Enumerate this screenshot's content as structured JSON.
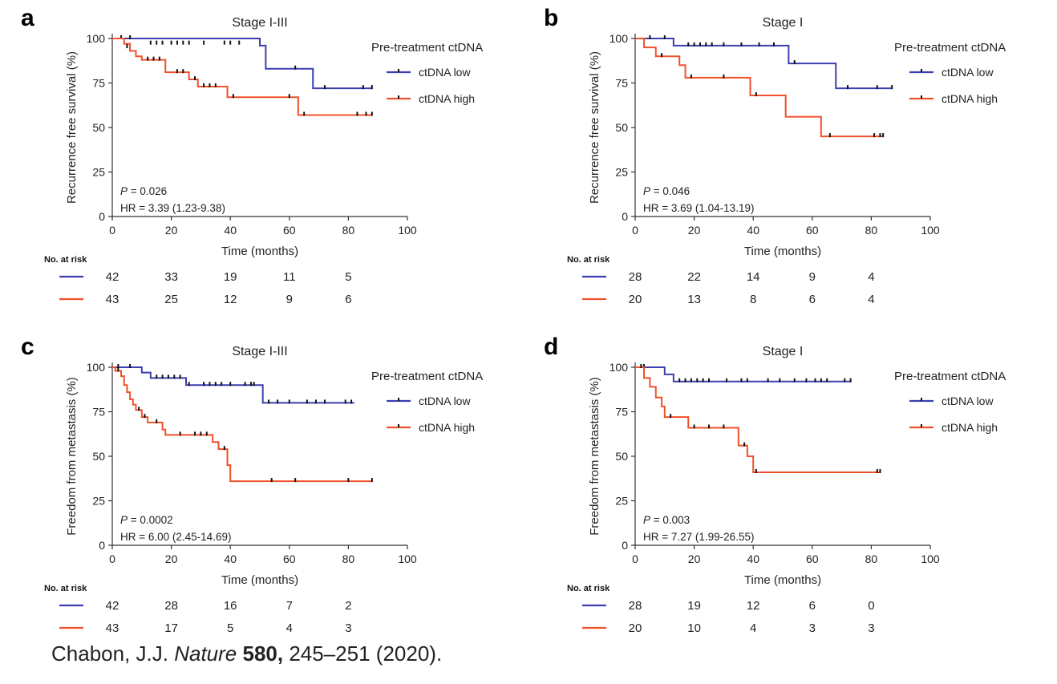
{
  "colors": {
    "low": "#3b3fb0",
    "high": "#f0502a",
    "axis": "#333333",
    "censor": "#111111"
  },
  "citation": {
    "author": "Chabon, J.J.",
    "journal": "Nature",
    "volume": "580,",
    "pages": "245–251 (2020)."
  },
  "chart_data": [
    {
      "panel": "a",
      "type": "line",
      "title": "Stage I-III",
      "xlabel": "Time (months)",
      "ylabel": "Recurrence free survival (%)",
      "xlim": [
        0,
        100
      ],
      "ylim": [
        0,
        100
      ],
      "xticks": [
        "0",
        "20",
        "40",
        "60",
        "80",
        "100"
      ],
      "yticks": [
        "0",
        "25",
        "50",
        "75",
        "100"
      ],
      "legend_title": "Pre-treatment ctDNA",
      "p_label": "P",
      "p_value": " = 0.026",
      "hr": "HR = 3.39 (1.23-9.38)",
      "risk_title": "No. at risk",
      "series": [
        {
          "name": "ctDNA low",
          "key": "low",
          "x_end": 88,
          "steps": [
            [
              0,
              100
            ],
            [
              50,
              96
            ],
            [
              52,
              83
            ],
            [
              68,
              72
            ]
          ],
          "censors": [
            [
              3,
              100
            ],
            [
              6,
              100
            ],
            [
              13,
              97
            ],
            [
              15,
              97
            ],
            [
              17,
              97
            ],
            [
              20,
              97
            ],
            [
              22,
              97
            ],
            [
              24,
              97
            ],
            [
              26,
              97
            ],
            [
              31,
              97
            ],
            [
              38,
              97
            ],
            [
              40,
              97
            ],
            [
              43,
              97
            ],
            [
              62,
              83
            ],
            [
              72,
              72
            ],
            [
              85,
              72
            ],
            [
              88,
              72
            ]
          ],
          "risk": [
            "42",
            "33",
            "19",
            "11",
            "5"
          ]
        },
        {
          "name": "ctDNA high",
          "key": "high",
          "x_end": 88,
          "steps": [
            [
              0,
              100
            ],
            [
              4,
              97
            ],
            [
              6,
              93
            ],
            [
              8,
              90
            ],
            [
              10,
              88
            ],
            [
              18,
              81
            ],
            [
              26,
              77
            ],
            [
              29,
              73
            ],
            [
              39,
              67
            ],
            [
              63,
              57
            ]
          ],
          "censors": [
            [
              5,
              95
            ],
            [
              12,
              88
            ],
            [
              14,
              88
            ],
            [
              16,
              88
            ],
            [
              22,
              81
            ],
            [
              24,
              81
            ],
            [
              28,
              77
            ],
            [
              31,
              73
            ],
            [
              33,
              73
            ],
            [
              35,
              73
            ],
            [
              41,
              67
            ],
            [
              60,
              67
            ],
            [
              65,
              57
            ],
            [
              83,
              57
            ],
            [
              86,
              57
            ],
            [
              88,
              57
            ]
          ],
          "risk": [
            "43",
            "25",
            "12",
            "9",
            "6"
          ]
        }
      ]
    },
    {
      "panel": "b",
      "type": "line",
      "title": "Stage I",
      "xlabel": "Time (months)",
      "ylabel": "Recurrence free survival (%)",
      "xlim": [
        0,
        100
      ],
      "ylim": [
        0,
        100
      ],
      "xticks": [
        "0",
        "20",
        "40",
        "60",
        "80",
        "100"
      ],
      "yticks": [
        "0",
        "25",
        "50",
        "75",
        "100"
      ],
      "legend_title": "Pre-treatment ctDNA",
      "p_label": "P",
      "p_value": " = 0.046",
      "hr": "HR = 3.69 (1.04-13.19)",
      "risk_title": "No. at risk",
      "series": [
        {
          "name": "ctDNA low",
          "key": "low",
          "x_end": 87,
          "steps": [
            [
              0,
              100
            ],
            [
              13,
              96
            ],
            [
              52,
              86
            ],
            [
              68,
              72
            ]
          ],
          "censors": [
            [
              5,
              100
            ],
            [
              10,
              100
            ],
            [
              18,
              96
            ],
            [
              20,
              96
            ],
            [
              22,
              96
            ],
            [
              24,
              96
            ],
            [
              26,
              96
            ],
            [
              30,
              96
            ],
            [
              36,
              96
            ],
            [
              42,
              96
            ],
            [
              47,
              96
            ],
            [
              54,
              86
            ],
            [
              72,
              72
            ],
            [
              82,
              72
            ],
            [
              87,
              72
            ]
          ],
          "risk": [
            "28",
            "22",
            "14",
            "9",
            "4"
          ]
        },
        {
          "name": "ctDNA high",
          "key": "high",
          "x_end": 84,
          "steps": [
            [
              0,
              100
            ],
            [
              3,
              95
            ],
            [
              7,
              90
            ],
            [
              15,
              85
            ],
            [
              17,
              78
            ],
            [
              39,
              68
            ],
            [
              51,
              56
            ],
            [
              63,
              45
            ]
          ],
          "censors": [
            [
              9,
              90
            ],
            [
              19,
              78
            ],
            [
              30,
              78
            ],
            [
              41,
              68
            ],
            [
              66,
              45
            ],
            [
              81,
              45
            ],
            [
              83,
              45
            ],
            [
              84,
              45
            ]
          ],
          "risk": [
            "20",
            "13",
            "8",
            "6",
            "4"
          ]
        }
      ]
    },
    {
      "panel": "c",
      "type": "line",
      "title": "Stage I-III",
      "xlabel": "Time (months)",
      "ylabel": "Freedom from metastasis (%)",
      "xlim": [
        0,
        100
      ],
      "ylim": [
        0,
        100
      ],
      "xticks": [
        "0",
        "20",
        "40",
        "60",
        "80",
        "100"
      ],
      "yticks": [
        "0",
        "25",
        "50",
        "75",
        "100"
      ],
      "legend_title": "Pre-treatment ctDNA",
      "p_label": "P",
      "p_value": " = 0.0002",
      "hr": "HR = 6.00 (2.45-14.69)",
      "risk_title": "No. at risk",
      "series": [
        {
          "name": "ctDNA low",
          "key": "low",
          "x_end": 82,
          "steps": [
            [
              0,
              100
            ],
            [
              10,
              97
            ],
            [
              13,
              94
            ],
            [
              25,
              90
            ],
            [
              51,
              80
            ]
          ],
          "censors": [
            [
              2,
              100
            ],
            [
              6,
              100
            ],
            [
              15,
              94
            ],
            [
              17,
              94
            ],
            [
              19,
              94
            ],
            [
              21,
              94
            ],
            [
              23,
              94
            ],
            [
              26,
              90
            ],
            [
              31,
              90
            ],
            [
              33,
              90
            ],
            [
              35,
              90
            ],
            [
              37,
              90
            ],
            [
              40,
              90
            ],
            [
              45,
              90
            ],
            [
              47,
              90
            ],
            [
              48,
              90
            ],
            [
              53,
              80
            ],
            [
              56,
              80
            ],
            [
              60,
              80
            ],
            [
              66,
              80
            ],
            [
              69,
              80
            ],
            [
              72,
              80
            ],
            [
              79,
              80
            ],
            [
              81,
              80
            ]
          ],
          "risk": [
            "42",
            "28",
            "16",
            "7",
            "2"
          ]
        },
        {
          "name": "ctDNA high",
          "key": "high",
          "x_end": 88,
          "steps": [
            [
              0,
              100
            ],
            [
              1,
              98
            ],
            [
              3,
              95
            ],
            [
              4,
              90
            ],
            [
              5,
              86
            ],
            [
              6,
              82
            ],
            [
              7,
              79
            ],
            [
              8,
              76
            ],
            [
              10,
              72
            ],
            [
              12,
              69
            ],
            [
              17,
              65
            ],
            [
              18,
              62
            ],
            [
              34,
              58
            ],
            [
              36,
              54
            ],
            [
              39,
              45
            ],
            [
              40,
              36
            ]
          ],
          "censors": [
            [
              2,
              98
            ],
            [
              9,
              76
            ],
            [
              11,
              72
            ],
            [
              15,
              69
            ],
            [
              23,
              62
            ],
            [
              28,
              62
            ],
            [
              30,
              62
            ],
            [
              32,
              62
            ],
            [
              38,
              54
            ],
            [
              54,
              36
            ],
            [
              62,
              36
            ],
            [
              80,
              36
            ],
            [
              88,
              36
            ]
          ],
          "risk": [
            "43",
            "17",
            "5",
            "4",
            "3"
          ]
        }
      ]
    },
    {
      "panel": "d",
      "type": "line",
      "title": "Stage I",
      "xlabel": "Time (months)",
      "ylabel": "Freedom from metastasis (%)",
      "xlim": [
        0,
        100
      ],
      "ylim": [
        0,
        100
      ],
      "xticks": [
        "0",
        "20",
        "40",
        "60",
        "80",
        "100"
      ],
      "yticks": [
        "0",
        "25",
        "50",
        "75",
        "100"
      ],
      "legend_title": "Pre-treatment ctDNA",
      "p_label": "P",
      "p_value": " = 0.003",
      "hr": "HR = 7.27 (1.99-26.55)",
      "risk_title": "No. at risk",
      "series": [
        {
          "name": "ctDNA low",
          "key": "low",
          "x_end": 73,
          "steps": [
            [
              0,
              100
            ],
            [
              10,
              96
            ],
            [
              13,
              92
            ]
          ],
          "censors": [
            [
              3,
              100
            ],
            [
              15,
              92
            ],
            [
              17,
              92
            ],
            [
              19,
              92
            ],
            [
              21,
              92
            ],
            [
              23,
              92
            ],
            [
              25,
              92
            ],
            [
              31,
              92
            ],
            [
              36,
              92
            ],
            [
              38,
              92
            ],
            [
              45,
              92
            ],
            [
              49,
              92
            ],
            [
              54,
              92
            ],
            [
              58,
              92
            ],
            [
              61,
              92
            ],
            [
              63,
              92
            ],
            [
              65,
              92
            ],
            [
              71,
              92
            ],
            [
              73,
              92
            ]
          ],
          "risk": [
            "28",
            "19",
            "12",
            "6",
            "0"
          ]
        },
        {
          "name": "ctDNA high",
          "key": "high",
          "x_end": 83,
          "steps": [
            [
              0,
              100
            ],
            [
              3,
              94
            ],
            [
              5,
              89
            ],
            [
              7,
              83
            ],
            [
              9,
              78
            ],
            [
              10,
              72
            ],
            [
              18,
              66
            ],
            [
              35,
              56
            ],
            [
              38,
              50
            ],
            [
              40,
              41
            ]
          ],
          "censors": [
            [
              2,
              100
            ],
            [
              12,
              72
            ],
            [
              20,
              66
            ],
            [
              25,
              66
            ],
            [
              30,
              66
            ],
            [
              37,
              56
            ],
            [
              41,
              41
            ],
            [
              82,
              41
            ],
            [
              83,
              41
            ]
          ],
          "risk": [
            "20",
            "10",
            "4",
            "3",
            "3"
          ]
        }
      ]
    }
  ]
}
